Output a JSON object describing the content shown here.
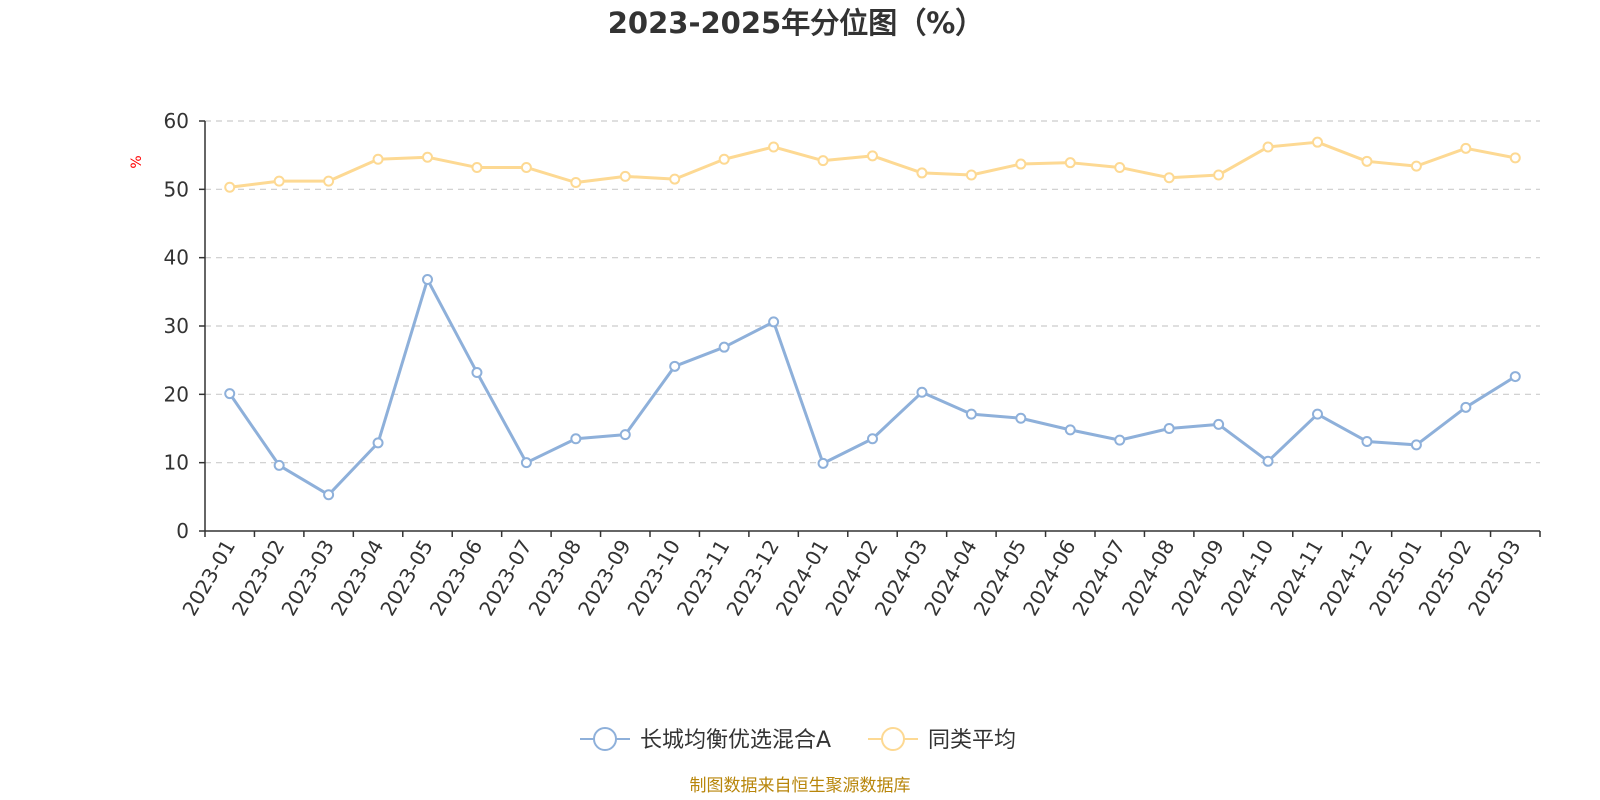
{
  "chart_data": {
    "type": "line",
    "title": "2023-2025年分位图（%）",
    "ylabel": "%",
    "xlabel": "",
    "ylim": [
      0,
      60
    ],
    "y_ticks": [
      0,
      10,
      20,
      30,
      40,
      50,
      60
    ],
    "grid": true,
    "legend_position": "bottom-center",
    "categories": [
      "2023-01",
      "2023-02",
      "2023-03",
      "2023-04",
      "2023-05",
      "2023-06",
      "2023-07",
      "2023-08",
      "2023-09",
      "2023-10",
      "2023-11",
      "2023-12",
      "2024-01",
      "2024-02",
      "2024-03",
      "2024-04",
      "2024-05",
      "2024-06",
      "2024-07",
      "2024-08",
      "2024-09",
      "2024-10",
      "2024-11",
      "2024-12",
      "2025-01",
      "2025-02",
      "2025-03"
    ],
    "series": [
      {
        "name": "长城均衡优选混合A",
        "color": "#8eb0da",
        "values": [
          20.1,
          9.6,
          5.3,
          12.9,
          36.8,
          23.2,
          10.0,
          13.5,
          14.1,
          24.1,
          26.9,
          30.6,
          9.9,
          13.5,
          20.3,
          17.1,
          16.5,
          14.8,
          13.3,
          15.0,
          15.6,
          10.2,
          17.1,
          13.1,
          12.6,
          18.1,
          22.6
        ]
      },
      {
        "name": "同类平均",
        "color": "#fdd993",
        "values": [
          50.3,
          51.2,
          51.2,
          54.4,
          54.7,
          53.2,
          53.2,
          51.0,
          51.9,
          51.5,
          54.4,
          56.2,
          54.2,
          54.9,
          52.4,
          52.1,
          53.7,
          53.9,
          53.2,
          51.7,
          52.1,
          56.2,
          56.9,
          54.1,
          53.4,
          56.0,
          54.6
        ]
      }
    ]
  },
  "source": "制图数据来自恒生聚源数据库"
}
